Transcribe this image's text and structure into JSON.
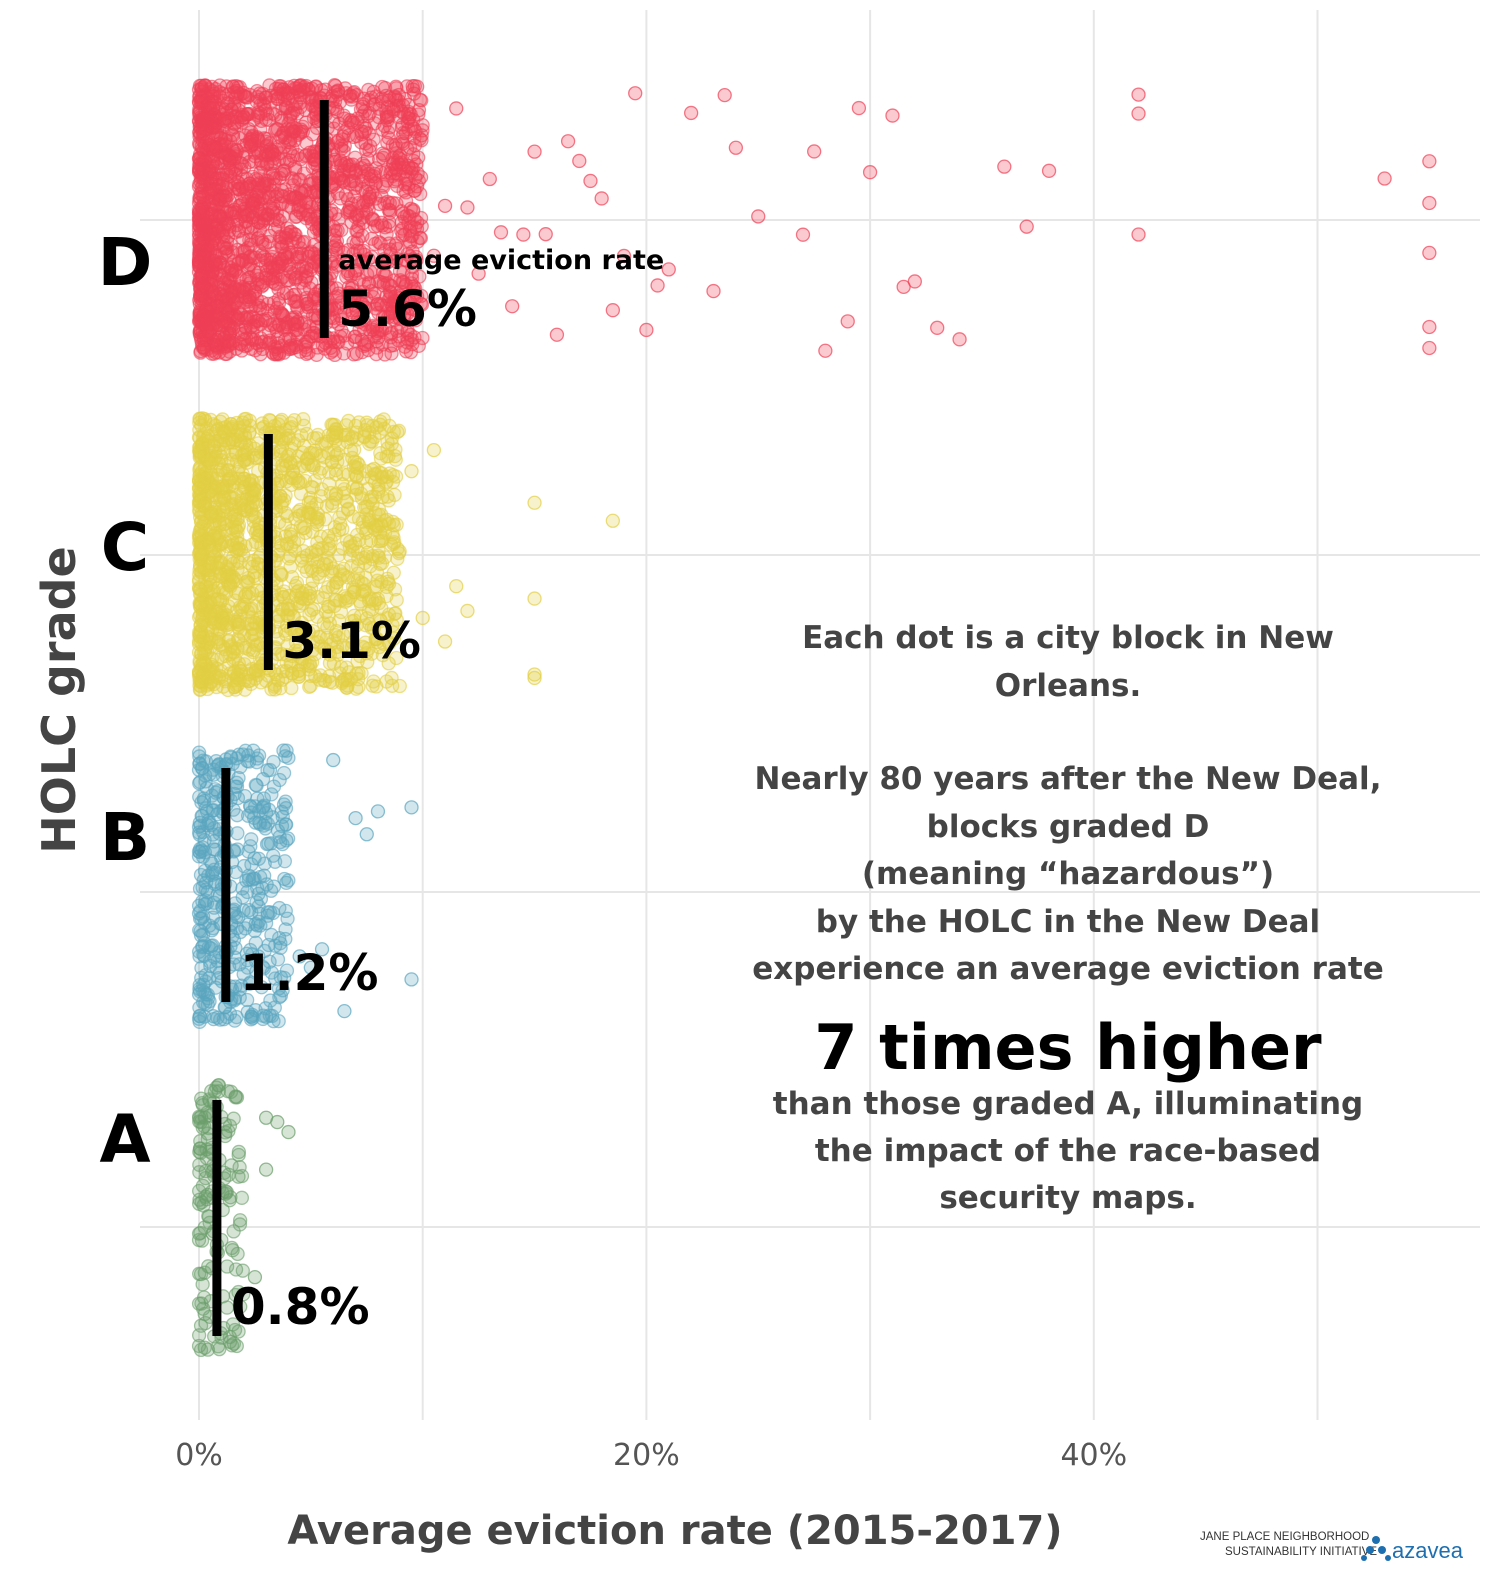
{
  "chart_data": {
    "type": "scatter",
    "variant": "jittered strip plot",
    "ylabel": "HOLC grade",
    "xlabel": "Average eviction rate (2015-2017)",
    "x_unit": "%",
    "xlim": [
      -1,
      58
    ],
    "x_ticks": [
      0,
      20,
      40
    ],
    "x_tick_labels": [
      "0%",
      "20%",
      "40%"
    ],
    "grid": true,
    "average_caption": "average eviction rate",
    "categories": [
      "D",
      "C",
      "B",
      "A"
    ],
    "colors": {
      "D": "#ef4056",
      "C": "#e3cf45",
      "B": "#5aa5bf",
      "A": "#6a9e6a",
      "average_bar": "#000000"
    },
    "series": [
      {
        "name": "D",
        "average": 5.6,
        "average_label": "5.6%",
        "dense_range": [
          0,
          10
        ],
        "sample_outliers": [
          10.5,
          11.0,
          11.5,
          12.0,
          12.5,
          13.0,
          13.5,
          14.0,
          14.5,
          15.0,
          15.5,
          16.0,
          16.5,
          17.0,
          17.5,
          18.0,
          18.5,
          19.0,
          19.5,
          20.0,
          20.5,
          21.0,
          22.0,
          23.0,
          23.5,
          24.0,
          25.0,
          27.0,
          27.5,
          28.0,
          29.0,
          29.5,
          30.0,
          31.0,
          31.5,
          32.0,
          33.0,
          34.0,
          36.0,
          37.0,
          38.0,
          42.0,
          42.0,
          42.0,
          53.0,
          55.0,
          55.0,
          55.0,
          55.0,
          55.0
        ]
      },
      {
        "name": "C",
        "average": 3.1,
        "average_label": "3.1%",
        "dense_range": [
          0,
          9
        ],
        "sample_outliers": [
          9.5,
          10.0,
          10.5,
          11.0,
          11.5,
          12.0,
          15.0,
          15.0,
          15.0,
          15.0,
          18.5
        ]
      },
      {
        "name": "B",
        "average": 1.2,
        "average_label": "1.2%",
        "dense_range": [
          0,
          4
        ],
        "sample_outliers": [
          4.5,
          5.0,
          5.5,
          6.0,
          6.5,
          7.0,
          7.5,
          8.0,
          9.5,
          9.5
        ]
      },
      {
        "name": "A",
        "average": 0.8,
        "average_label": "0.8%",
        "dense_range": [
          0,
          2
        ],
        "sample_outliers": [
          2.5,
          3.0,
          3.0,
          3.5,
          4.0
        ]
      }
    ],
    "annotation": {
      "line1": "Each dot is a city block in New",
      "line2": "Orleans.",
      "line3": "Nearly 80 years after the New Deal,",
      "line4": "blocks graded D",
      "line5": "(meaning “hazardous”)",
      "line6": "by the HOLC in the New Deal",
      "line7": "experience an average eviction rate",
      "emphasis": "7 times higher",
      "line8": "than those graded A, illuminating",
      "line9": "the impact of the race-based",
      "line10": "security maps."
    }
  },
  "credits": {
    "jane_place_line1": "JANE PLACE NEIGHBORHOOD",
    "jane_place_line2": "SUSTAINABILITY INITIATIVE",
    "azavea": "azavea"
  }
}
